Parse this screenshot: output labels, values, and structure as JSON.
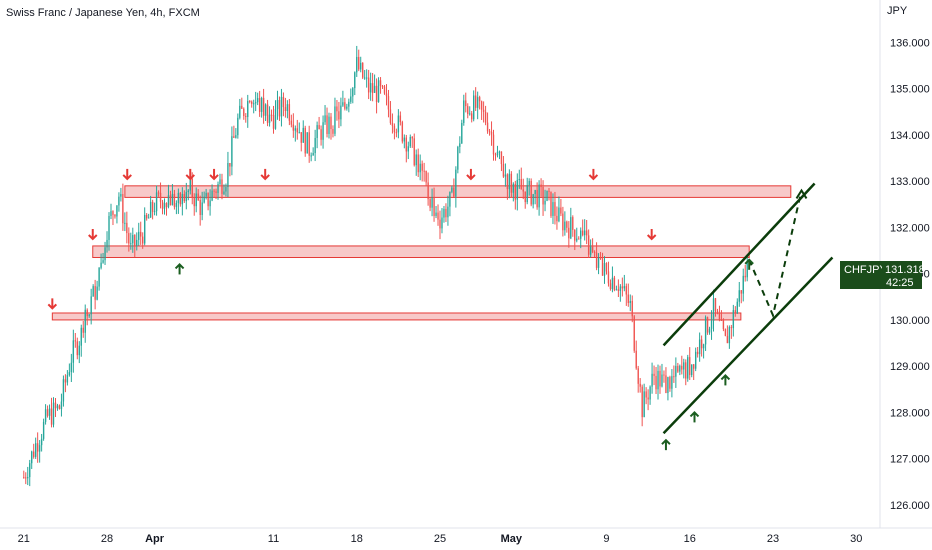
{
  "chart_data": {
    "type": "candlestick",
    "title": "Swiss Franc / Japanese Yen, 4h, FXCM",
    "currency": "JPY",
    "symbol": "CHFJPY",
    "last_price": "131.318",
    "countdown": "42:25",
    "ylim": [
      125.5,
      136.4
    ],
    "y_ticks": [
      "127.000",
      "128.000",
      "129.000",
      "130.000",
      "131.000",
      "132.000",
      "133.000",
      "134.000",
      "135.000",
      "136.000"
    ],
    "y_tick_values": [
      127,
      128,
      129,
      130,
      131,
      132,
      133,
      134,
      135,
      136
    ],
    "y_ticks_extra": [
      "126.000"
    ],
    "y_ticks_extra_values": [
      126
    ],
    "x_ticks": [
      "21",
      "28",
      "Apr",
      "11",
      "18",
      "25",
      "May",
      "9",
      "16",
      "23",
      "30"
    ],
    "x_tick_days": [
      0,
      7,
      11,
      21,
      28,
      35,
      41,
      49,
      56,
      63,
      70
    ],
    "x_range_days": [
      -2,
      72
    ],
    "bars_per_day": 6,
    "price_path": [
      [
        0,
        126.6
      ],
      [
        1,
        127.3
      ],
      [
        2,
        127.9
      ],
      [
        3,
        128.1
      ],
      [
        4,
        129.2
      ],
      [
        5,
        129.8
      ],
      [
        6,
        130.7
      ],
      [
        7,
        132.0
      ],
      [
        8,
        132.7
      ],
      [
        9,
        131.5
      ],
      [
        10,
        131.9
      ],
      [
        11,
        132.5
      ],
      [
        12,
        132.7
      ],
      [
        13,
        132.5
      ],
      [
        14,
        132.8
      ],
      [
        15,
        132.4
      ],
      [
        16,
        132.8
      ],
      [
        17,
        133.1
      ],
      [
        18,
        134.3
      ],
      [
        19,
        134.8
      ],
      [
        20,
        134.6
      ],
      [
        21,
        134.4
      ],
      [
        22,
        134.7
      ],
      [
        23,
        134.2
      ],
      [
        24,
        133.7
      ],
      [
        25,
        134.1
      ],
      [
        26,
        134.3
      ],
      [
        27,
        134.6
      ],
      [
        28,
        135.5
      ],
      [
        29,
        135.0
      ],
      [
        30,
        134.9
      ],
      [
        31,
        134.4
      ],
      [
        32,
        134.0
      ],
      [
        33,
        133.5
      ],
      [
        34,
        132.7
      ],
      [
        35,
        132.2
      ],
      [
        36,
        132.6
      ],
      [
        37,
        134.6
      ],
      [
        38,
        134.6
      ],
      [
        39,
        134.3
      ],
      [
        40,
        133.4
      ],
      [
        41,
        132.9
      ],
      [
        42,
        132.8
      ],
      [
        43,
        132.7
      ],
      [
        44,
        132.6
      ],
      [
        45,
        132.2
      ],
      [
        46,
        132.0
      ],
      [
        47,
        131.8
      ],
      [
        48,
        131.3
      ],
      [
        49,
        131.0
      ],
      [
        50,
        130.8
      ],
      [
        51,
        130.3
      ],
      [
        52,
        128.1
      ],
      [
        53,
        128.8
      ],
      [
        54,
        128.6
      ],
      [
        55,
        128.8
      ],
      [
        56,
        129.0
      ],
      [
        57,
        129.6
      ],
      [
        58,
        130.2
      ],
      [
        59,
        129.5
      ],
      [
        60,
        130.4
      ],
      [
        61,
        131.3
      ]
    ],
    "zones": [
      {
        "low": 132.65,
        "high": 132.9,
        "start_day": 8.5,
        "end_day": 64.5
      },
      {
        "low": 131.35,
        "high": 131.6,
        "start_day": 5.8,
        "end_day": 61.0
      },
      {
        "low": 130.0,
        "high": 130.15,
        "start_day": 2.4,
        "end_day": 60.3
      }
    ],
    "down_arrows": [
      {
        "day": 2.4,
        "price": 130.25
      },
      {
        "day": 5.8,
        "price": 131.75
      },
      {
        "day": 8.7,
        "price": 133.05
      },
      {
        "day": 14.0,
        "price": 133.05
      },
      {
        "day": 16.0,
        "price": 133.05
      },
      {
        "day": 20.3,
        "price": 133.05
      },
      {
        "day": 37.6,
        "price": 133.05
      },
      {
        "day": 47.9,
        "price": 133.05
      },
      {
        "day": 52.8,
        "price": 131.75
      }
    ],
    "up_arrows": [
      {
        "day": 13.1,
        "price": 131.2
      },
      {
        "day": 54.0,
        "price": 127.4
      },
      {
        "day": 56.4,
        "price": 128.0
      },
      {
        "day": 59.0,
        "price": 128.8
      },
      {
        "day": 61.0,
        "price": 131.3
      }
    ],
    "channel_upper": {
      "from": [
        53.8,
        129.45
      ],
      "to": [
        66.5,
        132.95
      ]
    },
    "channel_lower": {
      "from": [
        53.8,
        127.55
      ],
      "to": [
        68.0,
        131.35
      ]
    },
    "projection": [
      [
        61.0,
        131.3
      ],
      [
        63.0,
        130.1
      ],
      [
        65.4,
        132.8
      ]
    ],
    "colors": {
      "up": "#26a69a",
      "down": "#ef5350",
      "zone_fill": "#f7c9c9",
      "zone_stroke": "#e53935",
      "arrow_down": "#e53935",
      "arrow_up": "#1b5e20",
      "channel": "#0b3d0b",
      "badge": "#1b4d1b"
    }
  }
}
